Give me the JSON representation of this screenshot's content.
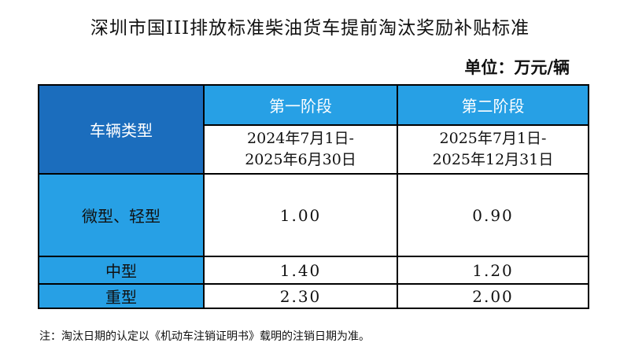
{
  "title": "深圳市国III排放标准柴油货车提前淘汰奖励补贴标准",
  "unit": "单位：万元/辆",
  "table": {
    "corner_label": "车辆类型",
    "stages": [
      {
        "name": "第一阶段",
        "date_start": "2024年7月1日-",
        "date_end": "2025年6月30日"
      },
      {
        "name": "第二阶段",
        "date_start": "2025年7月1日-",
        "date_end": "2025年12月31日"
      }
    ],
    "rows": [
      {
        "type": "微型、轻型",
        "stage1": "1.00",
        "stage2": "0.90"
      },
      {
        "type": "中型",
        "stage1": "1.40",
        "stage2": "1.20"
      },
      {
        "type": "重型",
        "stage1": "2.30",
        "stage2": "2.00"
      }
    ]
  },
  "note": "注：淘汰日期的认定以《机动车注销证明书》载明的注销日期为准。",
  "colors": {
    "header_dark": "#1b6dbd",
    "header_light": "#27a0e5"
  }
}
